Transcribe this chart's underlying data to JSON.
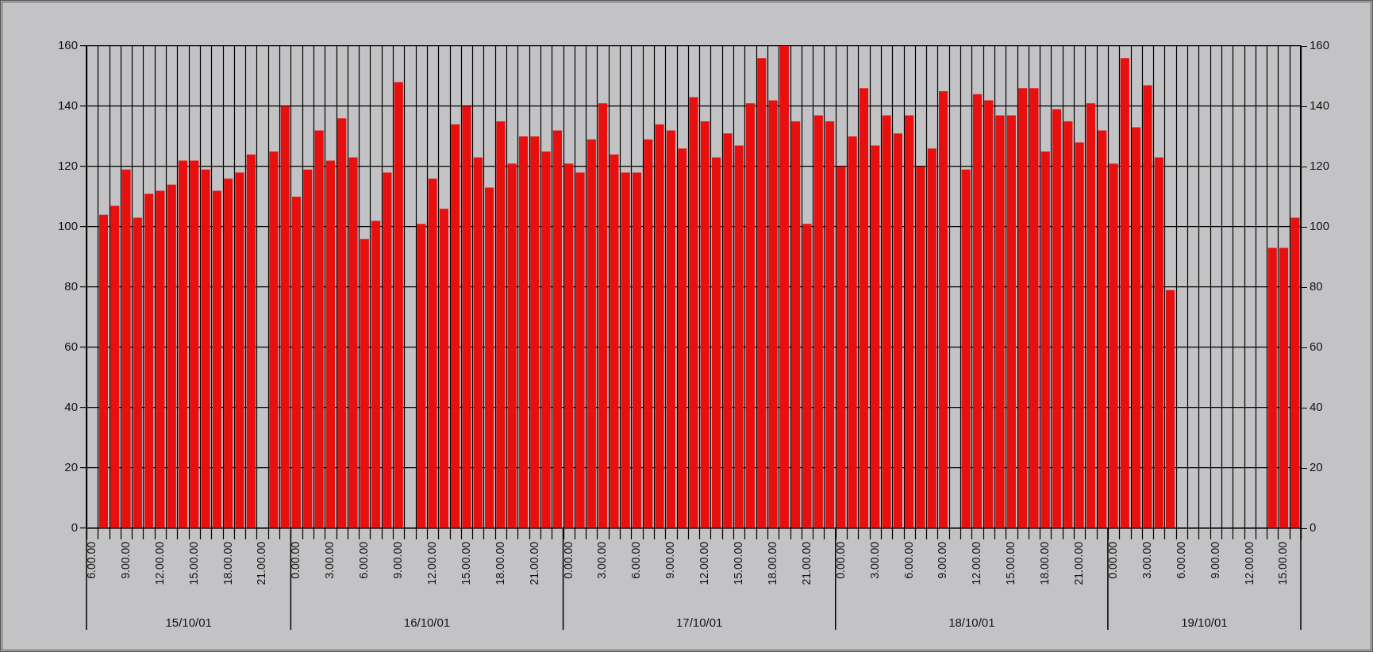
{
  "chart_data": {
    "type": "bar",
    "color": "#e8100f",
    "x": [
      "2001-10-15T07:00",
      "2001-10-15T08:00",
      "2001-10-15T09:00",
      "2001-10-15T10:00",
      "2001-10-15T11:00",
      "2001-10-15T12:00",
      "2001-10-15T13:00",
      "2001-10-15T14:00",
      "2001-10-15T15:00",
      "2001-10-15T16:00",
      "2001-10-15T17:00",
      "2001-10-15T18:00",
      "2001-10-15T19:00",
      "2001-10-15T20:00",
      "2001-10-15T21:00",
      "2001-10-15T22:00",
      "2001-10-15T23:00",
      "2001-10-16T00:00",
      "2001-10-16T01:00",
      "2001-10-16T02:00",
      "2001-10-16T03:00",
      "2001-10-16T04:00",
      "2001-10-16T05:00",
      "2001-10-16T06:00",
      "2001-10-16T07:00",
      "2001-10-16T08:00",
      "2001-10-16T09:00",
      "2001-10-16T10:00",
      "2001-10-16T11:00",
      "2001-10-16T12:00",
      "2001-10-16T13:00",
      "2001-10-16T14:00",
      "2001-10-16T15:00",
      "2001-10-16T16:00",
      "2001-10-16T17:00",
      "2001-10-16T18:00",
      "2001-10-16T19:00",
      "2001-10-16T20:00",
      "2001-10-16T21:00",
      "2001-10-16T22:00",
      "2001-10-16T23:00",
      "2001-10-17T00:00",
      "2001-10-17T01:00",
      "2001-10-17T02:00",
      "2001-10-17T03:00",
      "2001-10-17T04:00",
      "2001-10-17T05:00",
      "2001-10-17T06:00",
      "2001-10-17T07:00",
      "2001-10-17T08:00",
      "2001-10-17T09:00",
      "2001-10-17T10:00",
      "2001-10-17T11:00",
      "2001-10-17T12:00",
      "2001-10-17T13:00",
      "2001-10-17T14:00",
      "2001-10-17T15:00",
      "2001-10-17T16:00",
      "2001-10-17T17:00",
      "2001-10-17T18:00",
      "2001-10-17T19:00",
      "2001-10-17T20:00",
      "2001-10-17T21:00",
      "2001-10-17T22:00",
      "2001-10-17T23:00",
      "2001-10-18T00:00",
      "2001-10-18T01:00",
      "2001-10-18T02:00",
      "2001-10-18T03:00",
      "2001-10-18T04:00",
      "2001-10-18T05:00",
      "2001-10-18T06:00",
      "2001-10-18T07:00",
      "2001-10-18T08:00",
      "2001-10-18T09:00",
      "2001-10-18T10:00",
      "2001-10-18T11:00",
      "2001-10-18T12:00",
      "2001-10-18T13:00",
      "2001-10-18T14:00",
      "2001-10-18T15:00",
      "2001-10-18T16:00",
      "2001-10-18T17:00",
      "2001-10-18T18:00",
      "2001-10-18T19:00",
      "2001-10-18T20:00",
      "2001-10-18T21:00",
      "2001-10-18T22:00",
      "2001-10-18T23:00",
      "2001-10-19T00:00",
      "2001-10-19T01:00",
      "2001-10-19T02:00",
      "2001-10-19T03:00",
      "2001-10-19T04:00",
      "2001-10-19T05:00",
      "2001-10-19T06:00",
      "2001-10-19T07:00",
      "2001-10-19T08:00",
      "2001-10-19T09:00",
      "2001-10-19T10:00",
      "2001-10-19T11:00",
      "2001-10-19T12:00",
      "2001-10-19T13:00",
      "2001-10-19T14:00",
      "2001-10-19T15:00",
      "2001-10-19T16:00"
    ],
    "values": [
      104,
      107,
      119,
      103,
      111,
      112,
      114,
      122,
      122,
      119,
      112,
      116,
      118,
      124,
      null,
      125,
      140,
      110,
      119,
      132,
      122,
      136,
      123,
      96,
      102,
      118,
      148,
      null,
      101,
      116,
      106,
      134,
      140,
      123,
      113,
      135,
      121,
      130,
      130,
      125,
      132,
      121,
      118,
      129,
      141,
      124,
      118,
      118,
      129,
      134,
      132,
      126,
      143,
      135,
      123,
      131,
      127,
      141,
      156,
      142,
      160,
      135,
      101,
      137,
      135,
      120,
      130,
      146,
      127,
      137,
      131,
      137,
      120,
      126,
      145,
      null,
      119,
      144,
      142,
      137,
      137,
      146,
      146,
      125,
      139,
      135,
      128,
      141,
      132,
      121,
      156,
      133,
      147,
      123,
      79,
      null,
      null,
      null,
      null,
      null,
      null,
      null,
      null,
      93,
      93,
      103
    ],
    "xlim": [
      "--10-15T05:30",
      "--10-19T16:30"
    ],
    "xticks": [
      {
        "value": "2001-10-15T06:00",
        "label": "6.00.00"
      },
      {
        "value": "2001-10-15T09:00",
        "label": "9.00.00"
      },
      {
        "value": "2001-10-15T12:00",
        "label": "12.00.00"
      },
      {
        "value": "2001-10-15T15:00",
        "label": "15.00.00"
      },
      {
        "value": "2001-10-15T18:00",
        "label": "18.00.00"
      },
      {
        "value": "2001-10-15T21:00",
        "label": "21.00.00"
      },
      {
        "value": "2001-10-16T00:00",
        "label": "0.00.00"
      },
      {
        "value": "2001-10-16T03:00",
        "label": "3.00.00"
      },
      {
        "value": "2001-10-16T06:00",
        "label": "6.00.00"
      },
      {
        "value": "2001-10-16T09:00",
        "label": "9.00.00"
      },
      {
        "value": "2001-10-16T12:00",
        "label": "12.00.00"
      },
      {
        "value": "2001-10-16T15:00",
        "label": "15.00.00"
      },
      {
        "value": "2001-10-16T18:00",
        "label": "18.00.00"
      },
      {
        "value": "2001-10-16T21:00",
        "label": "21.00.00"
      },
      {
        "value": "2001-10-17T00:00",
        "label": "0.00.00"
      },
      {
        "value": "2001-10-17T03:00",
        "label": "3.00.00"
      },
      {
        "value": "2001-10-17T06:00",
        "label": "6.00.00"
      },
      {
        "value": "2001-10-17T09:00",
        "label": "9.00.00"
      },
      {
        "value": "2001-10-17T12:00",
        "label": "12.00.00"
      },
      {
        "value": "2001-10-17T15:00",
        "label": "15.00.00"
      },
      {
        "value": "2001-10-17T18:00",
        "label": "18.00.00"
      },
      {
        "value": "2001-10-17T21:00",
        "label": "21.00.00"
      },
      {
        "value": "2001-10-18T00:00",
        "label": "0.00.00"
      },
      {
        "value": "2001-10-18T03:00",
        "label": "3.00.00"
      },
      {
        "value": "2001-10-18T06:00",
        "label": "6.00.00"
      },
      {
        "value": "2001-10-18T09:00",
        "label": "9.00.00"
      },
      {
        "value": "2001-10-18T12:00",
        "label": "12.00.00"
      },
      {
        "value": "2001-10-18T15:00",
        "label": "15.00.00"
      },
      {
        "value": "2001-10-18T18:00",
        "label": "18.00.00"
      },
      {
        "value": "2001-10-18T21:00",
        "label": "21.00.00"
      },
      {
        "value": "2001-10-19T00:00",
        "label": "0.00.00"
      },
      {
        "value": "2001-10-19T03:00",
        "label": "3.00.00"
      },
      {
        "value": "2001-10-19T06:00",
        "label": "6.00.00"
      },
      {
        "value": "2001-10-19T09:00",
        "label": "9.00.00"
      },
      {
        "value": "2001-10-19T12:00",
        "label": "12.00.00"
      },
      {
        "value": "2001-10-19T15:00",
        "label": "15.00.00"
      }
    ],
    "ylim": [
      0,
      160
    ],
    "yticks": [
      0,
      20,
      40,
      60,
      80,
      100,
      120,
      140,
      160
    ],
    "y2lim": [
      0,
      160
    ],
    "y2ticks": [
      0,
      20,
      40,
      60,
      80,
      100,
      120,
      140,
      160
    ],
    "grid": true,
    "annotations": [
      "15/10/01",
      "16/10/01",
      "17/10/01",
      "18/10/01",
      "19/10/01"
    ]
  }
}
